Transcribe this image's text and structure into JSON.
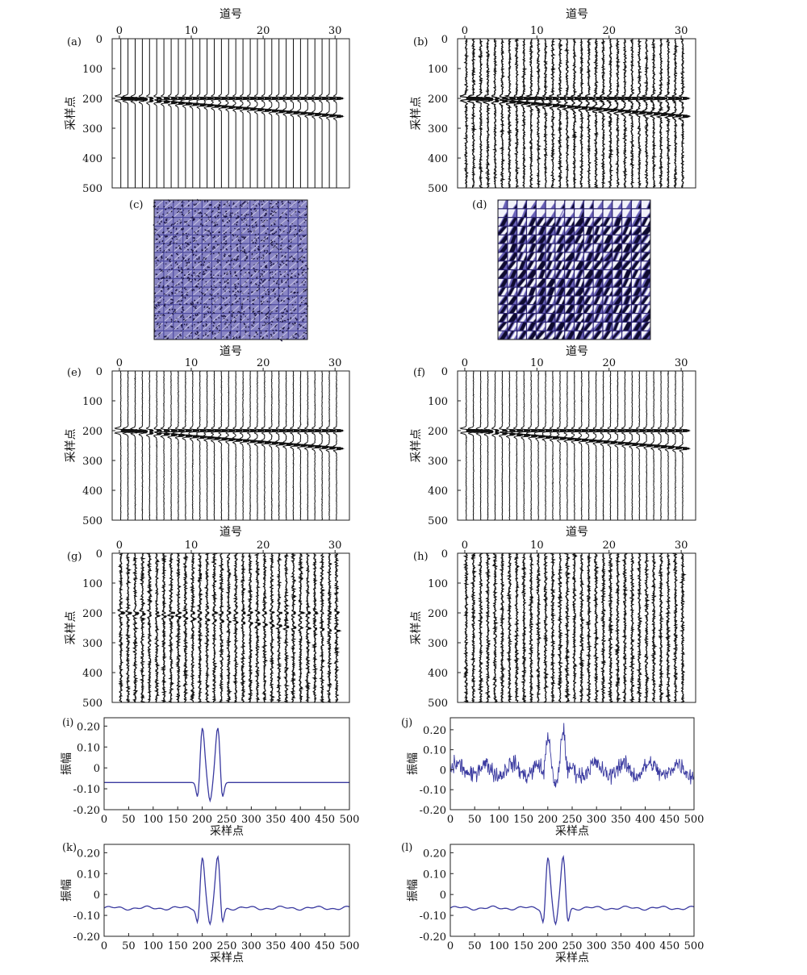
{
  "figure": {
    "panels_labels": [
      "(a)",
      "(b)",
      "(c)",
      "(d)",
      "(e)",
      "(f)",
      "(g)",
      "(h)",
      "(i)",
      "(j)",
      "(k)",
      "(l)"
    ]
  },
  "colors": {
    "trace": "#111111",
    "curve": "#3a3aa0",
    "dictionary": "#3b3490"
  },
  "chart_data": [
    {
      "id": "a",
      "type": "line",
      "label": "(a)",
      "xlabel": "道号",
      "ylabel": "采样点",
      "xticks": [
        0,
        10,
        20,
        30
      ],
      "yticks": [
        0,
        100,
        200,
        300,
        400,
        500
      ],
      "xlim": [
        -1,
        32
      ],
      "ylim": [
        0,
        500
      ],
      "traces": 31,
      "samples": 500,
      "events": [
        {
          "start": 200,
          "end": 200
        },
        {
          "start": 200,
          "end": 260
        }
      ],
      "noise": "none"
    },
    {
      "id": "b",
      "type": "line",
      "label": "(b)",
      "xlabel": "道号",
      "ylabel": "采样点",
      "xticks": [
        0,
        10,
        20,
        30
      ],
      "yticks": [
        0,
        100,
        200,
        300,
        400,
        500
      ],
      "xlim": [
        -1,
        32
      ],
      "ylim": [
        0,
        500
      ],
      "traces": 31,
      "samples": 500,
      "events": [
        {
          "start": 200,
          "end": 200
        },
        {
          "start": 200,
          "end": 260
        }
      ],
      "noise": "moderate"
    },
    {
      "id": "c",
      "type": "heatmap",
      "label": "(c)",
      "grid": [
        16,
        16
      ],
      "content": "dictionary atoms (noisy)"
    },
    {
      "id": "d",
      "type": "heatmap",
      "label": "(d)",
      "grid": [
        16,
        16
      ],
      "content": "dictionary atoms (learned)"
    },
    {
      "id": "e",
      "type": "line",
      "label": "(e)",
      "xlabel": "道号",
      "ylabel": "采样点",
      "xticks": [
        0,
        10,
        20,
        30
      ],
      "yticks": [
        0,
        100,
        200,
        300,
        400,
        500
      ],
      "xlim": [
        -1,
        32
      ],
      "ylim": [
        0,
        500
      ],
      "traces": 31,
      "samples": 500,
      "events": [
        {
          "start": 200,
          "end": 200
        },
        {
          "start": 200,
          "end": 260
        }
      ],
      "noise": "low"
    },
    {
      "id": "f",
      "type": "line",
      "label": "(f)",
      "xlabel": "道号",
      "ylabel": "采样点",
      "xticks": [
        0,
        10,
        20,
        30
      ],
      "yticks": [
        0,
        100,
        200,
        300,
        400,
        500
      ],
      "xlim": [
        -1,
        32
      ],
      "ylim": [
        0,
        500
      ],
      "traces": 31,
      "samples": 500,
      "events": [
        {
          "start": 200,
          "end": 200
        },
        {
          "start": 200,
          "end": 260
        }
      ],
      "noise": "low"
    },
    {
      "id": "g",
      "type": "line",
      "label": "(g)",
      "xlabel": "道号",
      "ylabel": "采样点",
      "xticks": [
        0,
        10,
        20,
        30
      ],
      "yticks": [
        0,
        100,
        200,
        300,
        400,
        500
      ],
      "xlim": [
        -1,
        32
      ],
      "ylim": [
        0,
        500
      ],
      "traces": 31,
      "samples": 500,
      "events": [
        {
          "start": 200,
          "end": 200
        },
        {
          "start": 200,
          "end": 260
        }
      ],
      "noise": "residual"
    },
    {
      "id": "h",
      "type": "line",
      "label": "(h)",
      "xlabel": "道号",
      "ylabel": "采样点",
      "xticks": [
        0,
        10,
        20,
        30
      ],
      "yticks": [
        0,
        100,
        200,
        300,
        400,
        500
      ],
      "xlim": [
        -1,
        32
      ],
      "ylim": [
        0,
        500
      ],
      "traces": 31,
      "samples": 500,
      "events": [],
      "noise": "residual"
    },
    {
      "id": "i",
      "type": "line",
      "label": "(i)",
      "xlabel": "采样点",
      "ylabel": "振幅",
      "xticks": [
        0,
        50,
        100,
        150,
        200,
        250,
        300,
        350,
        400,
        450,
        500
      ],
      "yticks": [
        -0.2,
        -0.1,
        0,
        0.1,
        0.2
      ],
      "ytick_labels": [
        "-0.20",
        "-0.10",
        "0",
        "0.10",
        "0.20"
      ],
      "xlim": [
        0,
        500
      ],
      "ylim": [
        -0.2,
        0.24
      ],
      "baseline": -0.07,
      "wavelet": "clean"
    },
    {
      "id": "j",
      "type": "line",
      "label": "(j)",
      "xlabel": "采样点",
      "ylabel": "振幅",
      "xticks": [
        0,
        50,
        100,
        150,
        200,
        250,
        300,
        350,
        400,
        450,
        500
      ],
      "yticks": [
        -0.2,
        -0.1,
        0,
        0.1,
        0.2
      ],
      "ytick_labels": [
        "-0.20",
        "-0.10",
        "0",
        "0.10",
        "0.20"
      ],
      "xlim": [
        0,
        500
      ],
      "ylim": [
        -0.2,
        0.26
      ],
      "baseline": 0,
      "wavelet": "noisy"
    },
    {
      "id": "k",
      "type": "line",
      "label": "(k)",
      "xlabel": "采样点",
      "ylabel": "振幅",
      "xticks": [
        0,
        50,
        100,
        150,
        200,
        250,
        300,
        350,
        400,
        450,
        500
      ],
      "yticks": [
        -0.2,
        -0.1,
        0,
        0.1,
        0.2
      ],
      "ytick_labels": [
        "-0.20",
        "-0.10",
        "0",
        "0.10",
        "0.20"
      ],
      "xlim": [
        0,
        500
      ],
      "ylim": [
        -0.2,
        0.24
      ],
      "baseline": -0.065,
      "wavelet": "denoised"
    },
    {
      "id": "l",
      "type": "line",
      "label": "(l)",
      "xlabel": "采样点",
      "ylabel": "振幅",
      "xticks": [
        0,
        50,
        100,
        150,
        200,
        250,
        300,
        350,
        400,
        450,
        500
      ],
      "yticks": [
        -0.2,
        -0.1,
        0,
        0.1,
        0.2
      ],
      "ytick_labels": [
        "-0.20",
        "-0.10",
        "0",
        "0.10",
        "0.20"
      ],
      "xlim": [
        0,
        500
      ],
      "ylim": [
        -0.2,
        0.24
      ],
      "baseline": -0.065,
      "wavelet": "denoised"
    }
  ]
}
